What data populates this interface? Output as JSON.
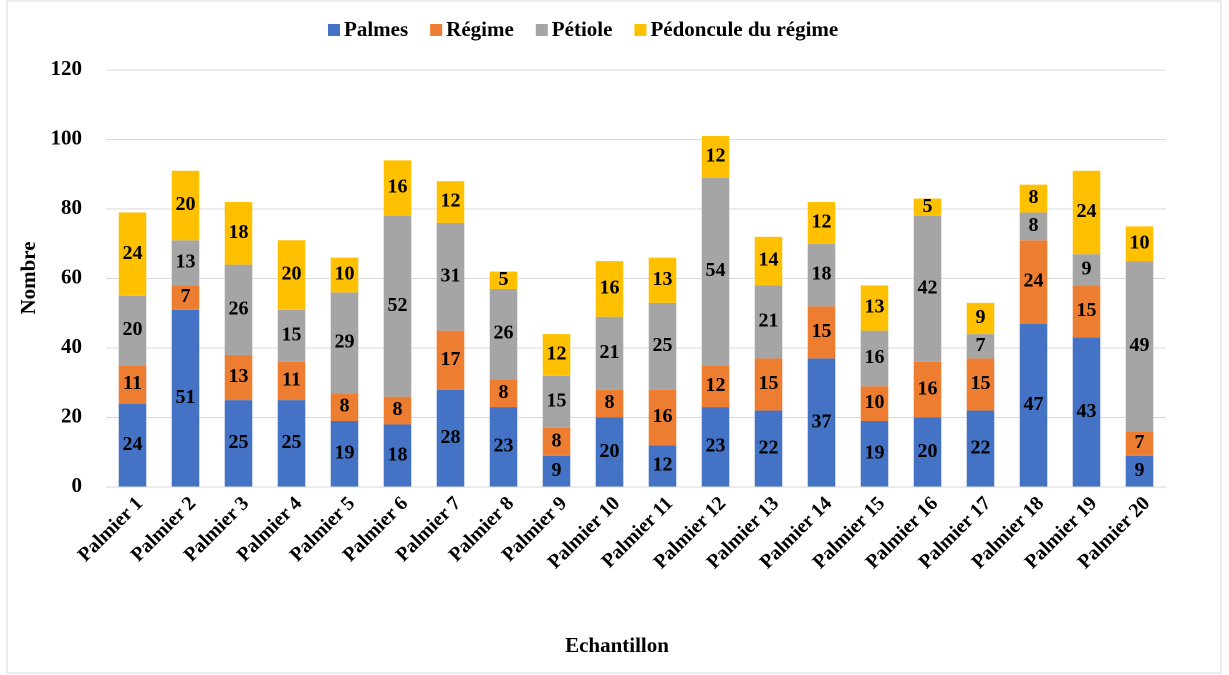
{
  "chart_data": {
    "type": "stacked_bar",
    "x_label": "Echantillon",
    "y_label": "Nombre",
    "categories": [
      "Palmier 1",
      "Palmier 2",
      "Palmier 3",
      "Palmier 4",
      "Palmier 5",
      "Palmier 6",
      "Palmier 7",
      "Palmier 8",
      "Palmier 9",
      "Palmier 10",
      "Palmier 11",
      "Palmier 12",
      "Palmier 13",
      "Palmier 14",
      "Palmier 15",
      "Palmier 16",
      "Palmier 17",
      "Palmier 18",
      "Palmier 19",
      "Palmier 20"
    ],
    "series": [
      {
        "name": "Palmes",
        "color": "#4472c4",
        "values": [
          24,
          51,
          25,
          25,
          19,
          18,
          28,
          23,
          9,
          20,
          12,
          23,
          22,
          37,
          19,
          20,
          22,
          47,
          43,
          9
        ]
      },
      {
        "name": "Régime",
        "color": "#ed7d31",
        "values": [
          11,
          7,
          13,
          11,
          8,
          8,
          17,
          8,
          8,
          8,
          16,
          12,
          15,
          15,
          10,
          16,
          15,
          24,
          15,
          7
        ]
      },
      {
        "name": "Pétiole",
        "color": "#a5a5a5",
        "values": [
          20,
          13,
          26,
          15,
          29,
          52,
          31,
          26,
          15,
          21,
          25,
          54,
          21,
          18,
          16,
          42,
          7,
          8,
          9,
          49
        ]
      },
      {
        "name": "Pédoncule du régime",
        "color": "#ffc000",
        "values": [
          24,
          20,
          18,
          20,
          10,
          16,
          12,
          5,
          12,
          16,
          13,
          12,
          14,
          12,
          13,
          5,
          9,
          8,
          24,
          10
        ]
      }
    ],
    "ylim": [
      0,
      120
    ],
    "yticks": [
      0,
      20,
      40,
      60,
      80,
      100,
      120
    ],
    "grid": true,
    "legend": "top"
  }
}
